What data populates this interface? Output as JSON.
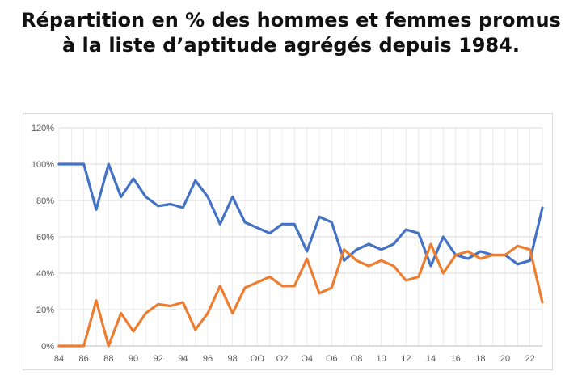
{
  "title_lines": [
    "Répartition en % des hommes et femmes promus",
    "à la liste d’aptitude agrégés depuis 1984."
  ],
  "chart_data": {
    "type": "line",
    "title": "Répartition en % des hommes et femmes promus à la liste d’aptitude agrégés depuis 1984.",
    "xlabel": "",
    "ylabel": "",
    "ylim": [
      0,
      120
    ],
    "grid": true,
    "legend": "none",
    "x": [
      1984,
      1985,
      1986,
      1987,
      1988,
      1989,
      1990,
      1991,
      1992,
      1993,
      1994,
      1995,
      1996,
      1997,
      1998,
      1999,
      2000,
      2001,
      2002,
      2003,
      2004,
      2005,
      2006,
      2007,
      2008,
      2009,
      2010,
      2011,
      2012,
      2013,
      2014,
      2015,
      2016,
      2017,
      2018,
      2019,
      2020,
      2021,
      2022,
      2023
    ],
    "x_tick_labels": [
      "84",
      "86",
      "88",
      "90",
      "92",
      "94",
      "96",
      "98",
      "OO",
      "O2",
      "O4",
      "O6",
      "O8",
      "10",
      "12",
      "14",
      "16",
      "18",
      "20",
      "22"
    ],
    "y_tick_labels": [
      "0%",
      "20%",
      "40%",
      "60%",
      "80%",
      "100%",
      "120%"
    ],
    "series": [
      {
        "color": "#4472C4",
        "values": [
          100,
          100,
          100,
          75,
          100,
          82,
          92,
          82,
          77,
          78,
          76,
          91,
          82,
          67,
          82,
          68,
          65,
          62,
          67,
          67,
          52,
          71,
          68,
          47,
          53,
          56,
          53,
          56,
          64,
          62,
          44,
          60,
          50,
          48,
          52,
          50,
          50,
          45,
          47,
          76
        ]
      },
      {
        "color": "#ED7D31",
        "values": [
          0,
          0,
          0,
          25,
          0,
          18,
          8,
          18,
          23,
          22,
          24,
          9,
          18,
          33,
          18,
          32,
          35,
          38,
          33,
          33,
          48,
          29,
          32,
          53,
          47,
          44,
          47,
          44,
          36,
          38,
          56,
          40,
          50,
          52,
          48,
          50,
          50,
          55,
          53,
          24
        ]
      }
    ]
  }
}
